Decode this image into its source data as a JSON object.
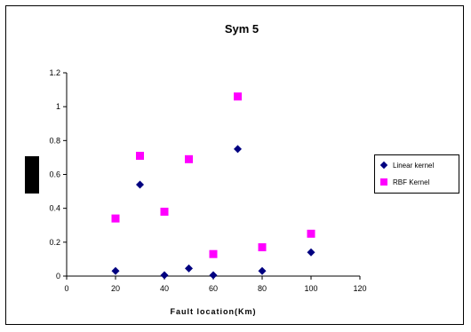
{
  "chart_data": {
    "type": "scatter",
    "title": "Sym 5",
    "xlabel": "Fault location(Km)",
    "ylabel": "",
    "xlim": [
      0,
      120
    ],
    "ylim": [
      0,
      1.2
    ],
    "x_ticks": [
      "0",
      "20",
      "40",
      "60",
      "80",
      "100",
      "120"
    ],
    "y_ticks": [
      "0",
      "0.2",
      "0.4",
      "0.6",
      "0.8",
      "1",
      "1.2"
    ],
    "grid": false,
    "legend_position": "right",
    "series": [
      {
        "name": "Linear kernel",
        "marker": "diamond",
        "color": "#000080",
        "points": [
          {
            "x": 20,
            "y": 0.03
          },
          {
            "x": 30,
            "y": 0.54
          },
          {
            "x": 40,
            "y": 0.005
          },
          {
            "x": 50,
            "y": 0.045
          },
          {
            "x": 60,
            "y": 0.005
          },
          {
            "x": 70,
            "y": 0.75
          },
          {
            "x": 80,
            "y": 0.03
          },
          {
            "x": 100,
            "y": 0.14
          }
        ]
      },
      {
        "name": "RBF Kernel",
        "marker": "square",
        "color": "#FF00FF",
        "points": [
          {
            "x": 20,
            "y": 0.34
          },
          {
            "x": 30,
            "y": 0.71
          },
          {
            "x": 40,
            "y": 0.38
          },
          {
            "x": 50,
            "y": 0.69
          },
          {
            "x": 60,
            "y": 0.13
          },
          {
            "x": 70,
            "y": 1.06
          },
          {
            "x": 80,
            "y": 0.17
          },
          {
            "x": 100,
            "y": 0.25
          }
        ]
      }
    ]
  }
}
